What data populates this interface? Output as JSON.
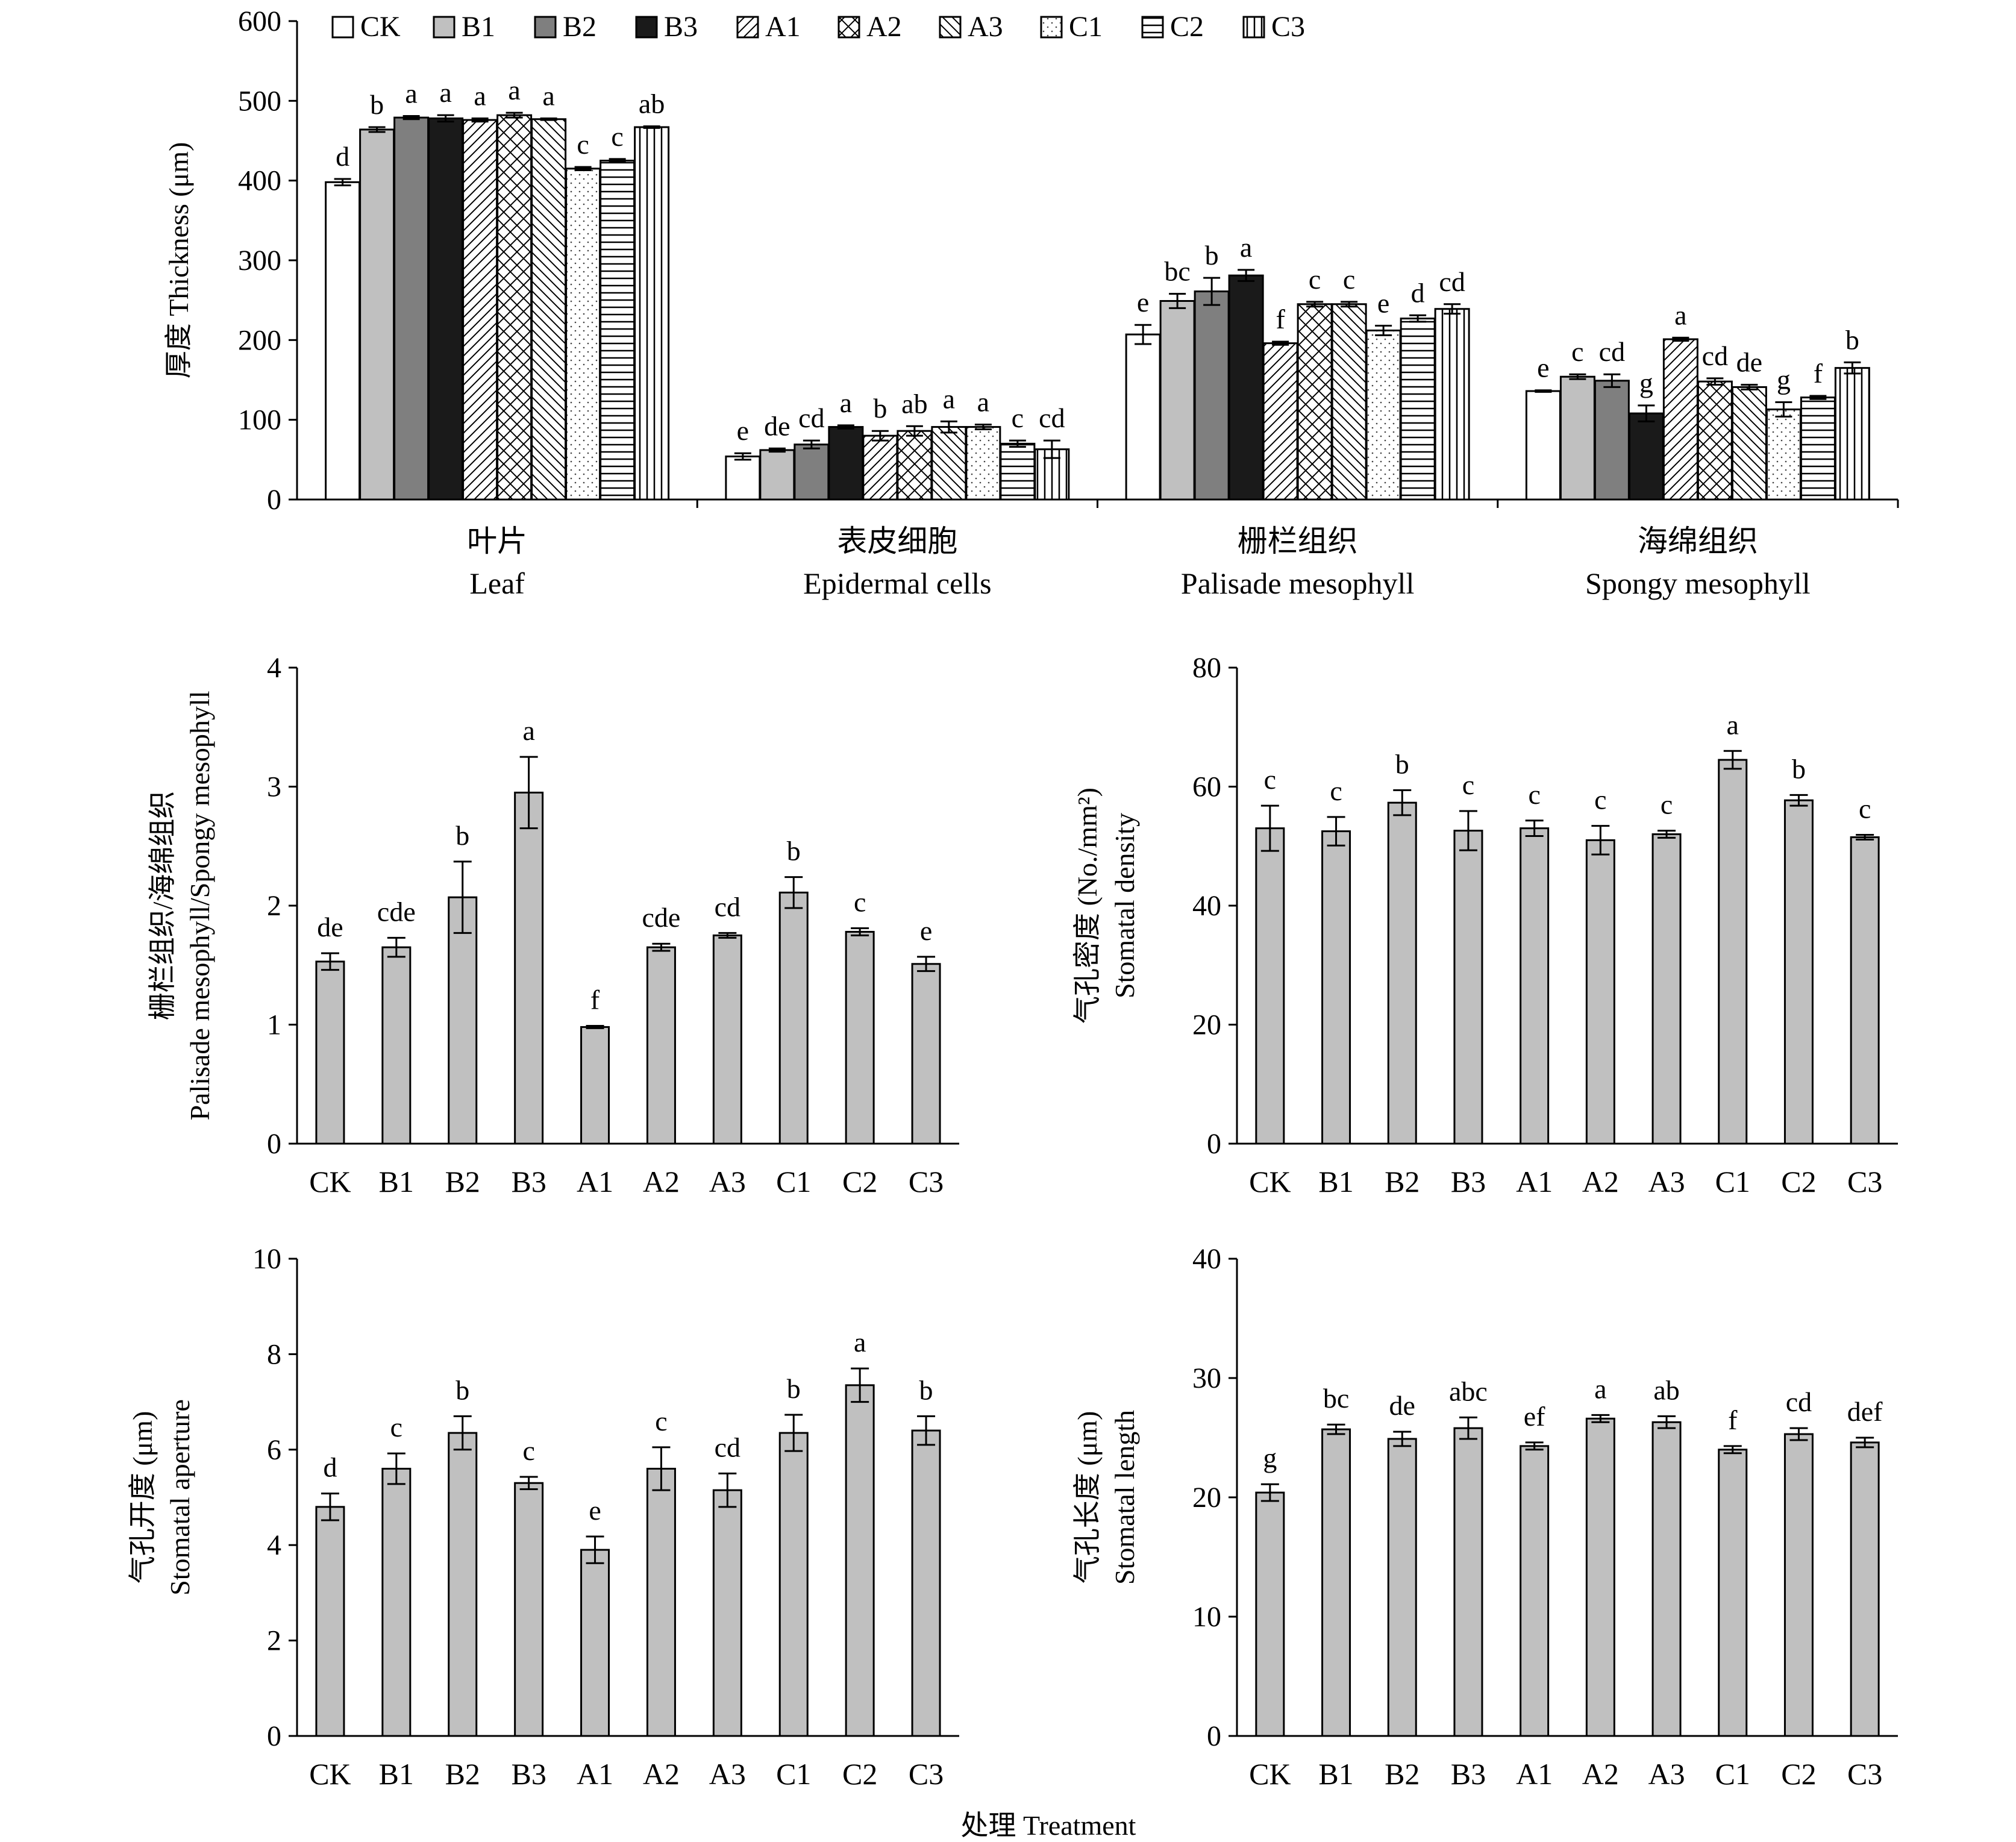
{
  "treatments": [
    "CK",
    "B1",
    "B2",
    "B3",
    "A1",
    "A2",
    "A3",
    "C1",
    "C2",
    "C3"
  ],
  "x_axis_title": "处理 Treatment",
  "chart_data": [
    {
      "id": "thickness",
      "type": "bar",
      "ylabel": "厚度 Thickness (μm)",
      "ylim": [
        0,
        600
      ],
      "yticks": [
        0,
        100,
        200,
        300,
        400,
        500,
        600
      ],
      "legend_position": "top",
      "series_patterns": [
        "white",
        "light-gray",
        "dark-gray",
        "black",
        "diagonal-right",
        "cross-hatch",
        "diagonal-left",
        "dots",
        "horizontal-lines",
        "vertical-lines"
      ],
      "categories": [
        {
          "cn": "叶片",
          "en": "Leaf"
        },
        {
          "cn": "表皮细胞",
          "en": "Epidermal cells"
        },
        {
          "cn": "栅栏组织",
          "en": "Palisade mesophyll"
        },
        {
          "cn": "海绵组织",
          "en": "Spongy mesophyll"
        }
      ],
      "series": [
        {
          "name": "CK",
          "values": [
            398,
            54,
            207,
            136
          ],
          "errors": [
            4,
            4,
            12,
            1
          ],
          "letters": [
            "d",
            "e",
            "e",
            "e"
          ]
        },
        {
          "name": "B1",
          "values": [
            464,
            62,
            249,
            154
          ],
          "errors": [
            3,
            2,
            9,
            3
          ],
          "letters": [
            "b",
            "de",
            "bc",
            "c"
          ]
        },
        {
          "name": "B2",
          "values": [
            479,
            69,
            261,
            149
          ],
          "errors": [
            2,
            5,
            17,
            8
          ],
          "letters": [
            "a",
            "cd",
            "b",
            "cd"
          ]
        },
        {
          "name": "B3",
          "values": [
            478,
            91,
            281,
            108
          ],
          "errors": [
            4,
            2,
            7,
            10
          ],
          "letters": [
            "a",
            "a",
            "a",
            "g"
          ]
        },
        {
          "name": "A1",
          "values": [
            476,
            80,
            196,
            201
          ],
          "errors": [
            2,
            6,
            2,
            2
          ],
          "letters": [
            "a",
            "b",
            "f",
            "a"
          ]
        },
        {
          "name": "A2",
          "values": [
            482,
            86,
            245,
            148
          ],
          "errors": [
            3,
            6,
            3,
            4
          ],
          "letters": [
            "a",
            "ab",
            "c",
            "cd"
          ]
        },
        {
          "name": "A3",
          "values": [
            477,
            91,
            245,
            141
          ],
          "errors": [
            1,
            7,
            3,
            3
          ],
          "letters": [
            "a",
            "a",
            "c",
            "de"
          ]
        },
        {
          "name": "C1",
          "values": [
            415,
            91,
            212,
            113
          ],
          "errors": [
            2,
            3,
            6,
            9
          ],
          "letters": [
            "c",
            "a",
            "e",
            "g"
          ]
        },
        {
          "name": "C2",
          "values": [
            425,
            70,
            227,
            128
          ],
          "errors": [
            2,
            4,
            4,
            2
          ],
          "letters": [
            "c",
            "c",
            "d",
            "f"
          ]
        },
        {
          "name": "C3",
          "values": [
            467,
            63,
            239,
            165
          ],
          "errors": [
            1,
            11,
            6,
            7
          ],
          "letters": [
            "ab",
            "cd",
            "cd",
            "b"
          ]
        }
      ]
    },
    {
      "id": "ratio",
      "type": "bar",
      "ylabel": [
        "栅栏组织/海绵组织",
        "Palisade mesophyll/Spongy mesophyll"
      ],
      "ylim": [
        0,
        4
      ],
      "yticks": [
        0,
        1,
        2,
        3,
        4
      ],
      "values": [
        1.53,
        1.65,
        2.07,
        2.95,
        0.98,
        1.65,
        1.75,
        2.11,
        1.78,
        1.51
      ],
      "errors": [
        0.07,
        0.08,
        0.3,
        0.3,
        0.01,
        0.03,
        0.02,
        0.13,
        0.03,
        0.06
      ],
      "letters": [
        "de",
        "cde",
        "b",
        "a",
        "f",
        "cde",
        "cd",
        "b",
        "c",
        "e"
      ]
    },
    {
      "id": "density",
      "type": "bar",
      "ylabel": [
        "气孔密度 (No./mm²)",
        "Stomatal density"
      ],
      "ylim": [
        0,
        80
      ],
      "yticks": [
        0,
        20,
        40,
        60,
        80
      ],
      "values": [
        53,
        52.5,
        57.3,
        52.6,
        53,
        51,
        52,
        64.5,
        57.7,
        51.5
      ],
      "errors": [
        3.8,
        2.4,
        2.1,
        3.3,
        1.3,
        2.4,
        0.6,
        1.5,
        0.9,
        0.4
      ],
      "letters": [
        "c",
        "c",
        "b",
        "c",
        "c",
        "c",
        "c",
        "a",
        "b",
        "c"
      ]
    },
    {
      "id": "aperture",
      "type": "bar",
      "ylabel": [
        "气孔开度 (μm)",
        "Stomatal aperture"
      ],
      "ylim": [
        0,
        10
      ],
      "yticks": [
        0,
        2,
        4,
        6,
        8,
        10
      ],
      "values": [
        4.8,
        5.6,
        6.35,
        5.3,
        3.9,
        5.6,
        5.15,
        6.35,
        7.35,
        6.4
      ],
      "errors": [
        0.28,
        0.32,
        0.35,
        0.13,
        0.28,
        0.45,
        0.35,
        0.38,
        0.35,
        0.3
      ],
      "letters": [
        "d",
        "c",
        "b",
        "c",
        "e",
        "c",
        "cd",
        "b",
        "a",
        "b"
      ]
    },
    {
      "id": "length",
      "type": "bar",
      "ylabel": [
        "气孔长度 (μm)",
        "Stomatal length"
      ],
      "ylim": [
        0,
        40
      ],
      "yticks": [
        0,
        10,
        20,
        30,
        40
      ],
      "values": [
        20.4,
        25.7,
        24.9,
        25.8,
        24.3,
        26.6,
        26.3,
        24.0,
        25.3,
        24.6
      ],
      "errors": [
        0.7,
        0.4,
        0.6,
        0.9,
        0.3,
        0.3,
        0.5,
        0.3,
        0.5,
        0.4
      ],
      "letters": [
        "g",
        "bc",
        "de",
        "abc",
        "ef",
        "a",
        "ab",
        "f",
        "cd",
        "def"
      ]
    }
  ]
}
